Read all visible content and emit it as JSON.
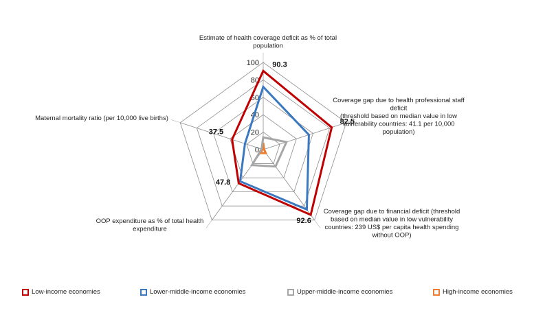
{
  "chart_data": {
    "type": "radar",
    "axes": [
      "Estimate of health coverage deficit as % of total population",
      "Coverage gap due to health professional staff deficit (threshold based on median value in low vulnerability countries: 41.1 per 10,000 population)",
      "Coverage gap due to financial deficit (threshold based on median value in low vulnerability countries: 239 US$ per capita health spending without OOP)",
      "OOP expenditure as % of total health expenditure",
      "Maternal mortality ratio (per 10,000 live births)"
    ],
    "axis_label_lines": [
      [
        "Estimate of health coverage deficit as % of total",
        "population"
      ],
      [
        "Coverage gap due to health professional staff",
        "deficit",
        "(threshold based on median value in low",
        "vulnerability countries: 41.1 per 10,000",
        "population)"
      ],
      [
        "Coverage gap due to financial deficit (threshold",
        "based on median value in low vulnerability",
        "countries: 239 US$ per capita health spending",
        "without OOP)"
      ],
      [
        "OOP expenditure as % of total health",
        "expenditure"
      ],
      [
        "Maternal mortality ratio (per 10,000 live births)"
      ]
    ],
    "radial_ticks": [
      0,
      20,
      40,
      60,
      80,
      100
    ],
    "rlim": [
      0,
      100
    ],
    "grid": true,
    "legend_position": "bottom",
    "series": [
      {
        "name": "Low-income economies",
        "color": "#c00000",
        "values": [
          90.3,
          82.5,
          92.6,
          47.8,
          37.5
        ]
      },
      {
        "name": "Lower-middle-income economies",
        "color": "#3a78c0",
        "values": [
          72,
          55,
          85,
          45,
          22
        ]
      },
      {
        "name": "Upper-middle-income economies",
        "color": "#a6a6a6",
        "values": [
          14,
          28,
          24,
          22,
          2
        ]
      },
      {
        "name": "High-income economies",
        "color": "#ed7d31",
        "values": [
          8,
          1,
          5,
          5,
          1
        ]
      }
    ],
    "data_labels": [
      "90.3",
      "82.5",
      "92.6",
      "47.8",
      "37.5"
    ]
  }
}
